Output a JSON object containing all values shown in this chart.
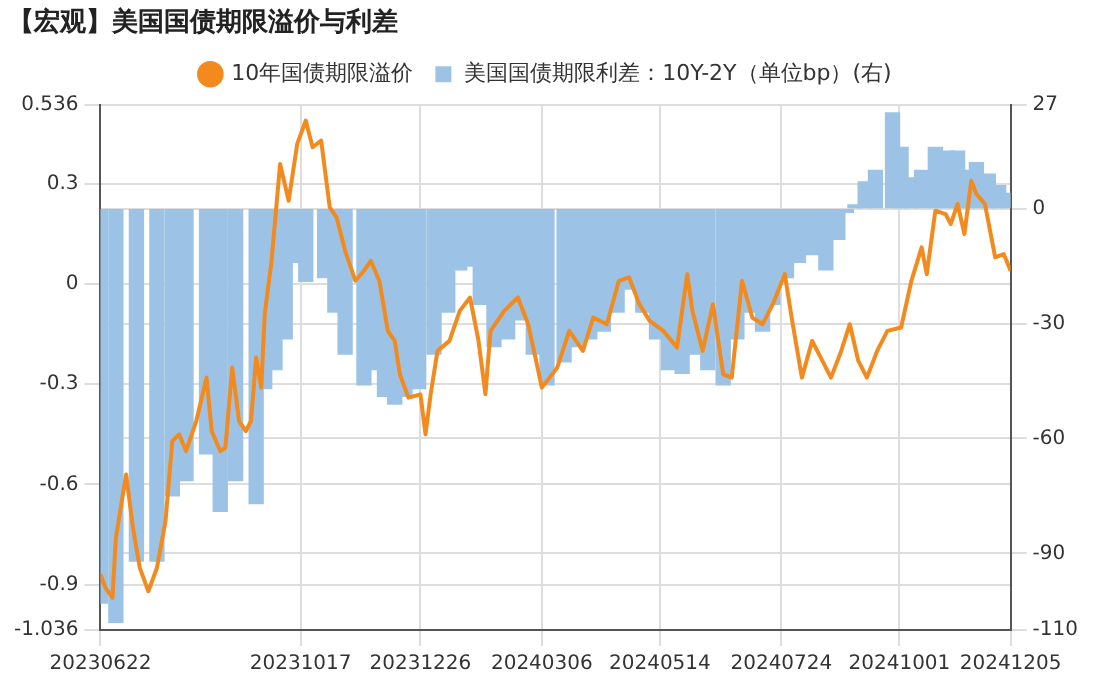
{
  "chart_data": {
    "type": "line",
    "title": "【宏观】美国国债期限溢价与利差",
    "legend": "top",
    "grid": true,
    "xlim": [
      "2023-06-22",
      "2024-12-05"
    ],
    "xticks": [
      {
        "value": "2023-06-22",
        "label": "20230622"
      },
      {
        "value": "2023-10-17",
        "label": "20231017"
      },
      {
        "value": "2023-12-26",
        "label": "20231226"
      },
      {
        "value": "2024-03-06",
        "label": "20240306"
      },
      {
        "value": "2024-05-14",
        "label": "20240514"
      },
      {
        "value": "2024-07-24",
        "label": "20240724"
      },
      {
        "value": "2024-10-01",
        "label": "20241001"
      },
      {
        "value": "2024-12-05",
        "label": "20241205"
      }
    ],
    "ylim": [
      -1.036,
      0.536
    ],
    "yticks": [
      -1.036,
      -0.9,
      -0.6,
      -0.3,
      0,
      0.3,
      0.536
    ],
    "y2lim": [
      -110,
      27
    ],
    "y2ticks": [
      -110,
      -90,
      -60,
      -30,
      0,
      27
    ],
    "series": [
      {
        "name": "10年国债期限溢价",
        "color": "#f28a1e",
        "x": [
          "2023-06-22",
          "2023-06-25",
          "2023-06-29",
          "2023-07-01",
          "2023-07-07",
          "2023-07-11",
          "2023-07-15",
          "2023-07-20",
          "2023-07-25",
          "2023-07-30",
          "2023-08-03",
          "2023-08-07",
          "2023-08-11",
          "2023-08-17",
          "2023-08-23",
          "2023-08-26",
          "2023-08-31",
          "2023-09-03",
          "2023-09-07",
          "2023-09-11",
          "2023-09-15",
          "2023-09-18",
          "2023-09-21",
          "2023-09-24",
          "2023-09-26",
          "2023-09-30",
          "2023-10-05",
          "2023-10-10",
          "2023-10-15",
          "2023-10-20",
          "2023-10-24",
          "2023-10-29",
          "2023-11-03",
          "2023-11-07",
          "2023-11-12",
          "2023-11-18",
          "2023-11-23",
          "2023-11-27",
          "2023-12-02",
          "2023-12-07",
          "2023-12-11",
          "2023-12-14",
          "2023-12-19",
          "2023-12-26",
          "2023-12-29",
          "2024-01-01",
          "2024-01-05",
          "2024-01-12",
          "2024-01-18",
          "2024-01-24",
          "2024-01-29",
          "2024-02-02",
          "2024-02-05",
          "2024-02-13",
          "2024-02-21",
          "2024-02-27",
          "2024-03-01",
          "2024-03-06",
          "2024-03-15",
          "2024-03-22",
          "2024-03-30",
          "2024-04-05",
          "2024-04-13",
          "2024-04-20",
          "2024-04-26",
          "2024-05-02",
          "2024-05-08",
          "2024-05-16",
          "2024-05-24",
          "2024-05-30",
          "2024-06-02",
          "2024-06-08",
          "2024-06-14",
          "2024-06-20",
          "2024-06-25",
          "2024-07-01",
          "2024-07-07",
          "2024-07-13",
          "2024-07-19",
          "2024-07-26",
          "2024-07-30",
          "2024-08-05",
          "2024-08-11",
          "2024-08-17",
          "2024-08-22",
          "2024-08-28",
          "2024-09-02",
          "2024-09-07",
          "2024-09-12",
          "2024-09-18",
          "2024-09-24",
          "2024-10-02",
          "2024-10-08",
          "2024-10-14",
          "2024-10-17",
          "2024-10-22",
          "2024-10-28",
          "2024-10-31",
          "2024-11-04",
          "2024-11-08",
          "2024-11-12",
          "2024-11-15",
          "2024-11-20",
          "2024-11-26",
          "2024-12-01",
          "2024-12-05"
        ],
        "values": [
          -0.87,
          -0.91,
          -0.94,
          -0.76,
          -0.57,
          -0.73,
          -0.85,
          -0.92,
          -0.85,
          -0.71,
          -0.47,
          -0.45,
          -0.5,
          -0.41,
          -0.28,
          -0.44,
          -0.5,
          -0.49,
          -0.25,
          -0.41,
          -0.44,
          -0.41,
          -0.22,
          -0.31,
          -0.09,
          0.07,
          0.36,
          0.25,
          0.42,
          0.49,
          0.41,
          0.43,
          0.23,
          0.2,
          0.1,
          0.01,
          0.04,
          0.07,
          0.01,
          -0.14,
          -0.17,
          -0.27,
          -0.34,
          -0.33,
          -0.45,
          -0.33,
          -0.2,
          -0.17,
          -0.08,
          -0.04,
          -0.17,
          -0.33,
          -0.14,
          -0.08,
          -0.04,
          -0.12,
          -0.19,
          -0.31,
          -0.25,
          -0.14,
          -0.2,
          -0.1,
          -0.12,
          0.01,
          0.02,
          -0.06,
          -0.11,
          -0.14,
          -0.19,
          0.03,
          -0.08,
          -0.2,
          -0.06,
          -0.27,
          -0.28,
          0.01,
          -0.1,
          -0.12,
          -0.06,
          0.03,
          -0.1,
          -0.28,
          -0.17,
          -0.23,
          -0.28,
          -0.2,
          -0.12,
          -0.23,
          -0.28,
          -0.2,
          -0.14,
          -0.13,
          0.01,
          0.11,
          0.03,
          0.22,
          0.21,
          0.18,
          0.24,
          0.15,
          0.31,
          0.27,
          0.24,
          0.08,
          0.09,
          0.04
        ]
      },
      {
        "name": "美国国债期限利差：10Y-2Y（单位bp）(右)",
        "type": "bar",
        "axis": "y2",
        "color": "#9cc3e5",
        "x": [
          "2023-06-22",
          "2023-07-01",
          "2023-07-13",
          "2023-07-25",
          "2023-08-03",
          "2023-08-11",
          "2023-08-23",
          "2023-08-31",
          "2023-09-09",
          "2023-09-21",
          "2023-09-26",
          "2023-10-02",
          "2023-10-08",
          "2023-10-14",
          "2023-10-20",
          "2023-10-31",
          "2023-11-06",
          "2023-11-12",
          "2023-11-23",
          "2023-11-29",
          "2023-12-05",
          "2023-12-11",
          "2023-12-17",
          "2023-12-25",
          "2024-01-03",
          "2024-01-11",
          "2024-01-18",
          "2024-01-24",
          "2024-01-30",
          "2024-02-07",
          "2024-02-15",
          "2024-02-22",
          "2024-03-01",
          "2024-03-09",
          "2024-03-19",
          "2024-03-27",
          "2024-04-03",
          "2024-04-11",
          "2024-04-19",
          "2024-04-26",
          "2024-05-04",
          "2024-05-12",
          "2024-05-19",
          "2024-05-27",
          "2024-06-04",
          "2024-06-11",
          "2024-06-20",
          "2024-06-28",
          "2024-07-05",
          "2024-07-13",
          "2024-07-19",
          "2024-07-27",
          "2024-08-03",
          "2024-08-11",
          "2024-08-19",
          "2024-08-26",
          "2024-08-31",
          "2024-09-05",
          "2024-09-11",
          "2024-09-17",
          "2024-09-27",
          "2024-10-02",
          "2024-10-08",
          "2024-10-14",
          "2024-10-22",
          "2024-10-29",
          "2024-11-04",
          "2024-11-09",
          "2024-11-15",
          "2024-11-22",
          "2024-11-28",
          "2024-12-03"
        ],
        "values": [
          -103,
          -108,
          -92,
          -92,
          -75,
          -71,
          -64,
          -79,
          -71,
          -77,
          -47,
          -42,
          -34,
          -14,
          -19,
          -18,
          -27,
          -38,
          -46,
          -42,
          -49,
          -51,
          -49,
          -47,
          -38,
          -27,
          -16,
          -15,
          -25,
          -36,
          -34,
          -29,
          -38,
          -46,
          -40,
          -36,
          -34,
          -32,
          -27,
          -21,
          -27,
          -34,
          -42,
          -43,
          -38,
          -42,
          -46,
          -34,
          -27,
          -32,
          -25,
          -18,
          -14,
          -12,
          -16,
          -8,
          -1,
          1,
          7,
          10,
          25,
          16,
          8,
          10,
          16,
          15,
          15,
          10,
          12,
          9,
          6,
          4
        ]
      }
    ]
  }
}
